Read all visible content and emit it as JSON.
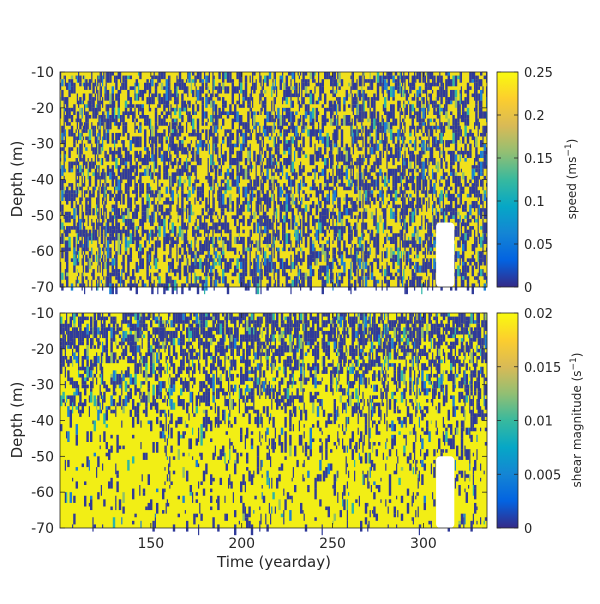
{
  "chart_data": [
    {
      "type": "heatmap",
      "ylabel": "Depth (m)",
      "xlabel": "",
      "xlim": [
        100,
        335
      ],
      "ylim": [
        -70,
        -10
      ],
      "xticks": [
        150,
        200,
        250,
        300
      ],
      "yticks": [
        -10,
        -20,
        -30,
        -40,
        -50,
        -60,
        -70
      ],
      "xtick_labels": [
        "",
        "",
        "",
        ""
      ],
      "ytick_labels": [
        "-10",
        "-20",
        "-30",
        "-40",
        "-50",
        "-60",
        "-70"
      ],
      "colorbar": {
        "label_prefix": "speed (ms",
        "label_exp": "−1",
        "label_suffix": ")",
        "range": [
          0,
          0.25
        ],
        "ticks": [
          0,
          0.05,
          0.1,
          0.15,
          0.2,
          0.25
        ],
        "tick_labels": [
          "0",
          "0.05",
          "0.1",
          "0.15",
          "0.2",
          "0.25"
        ]
      },
      "colormap": "parula",
      "pattern": "speed",
      "no_data_region": {
        "x": [
          307,
          317
        ],
        "y_top": -52
      }
    },
    {
      "type": "heatmap",
      "ylabel": "Depth (m)",
      "xlabel": "Time (yearday)",
      "xlim": [
        100,
        335
      ],
      "ylim": [
        -70,
        -10
      ],
      "xticks": [
        150,
        200,
        250,
        300
      ],
      "yticks": [
        -10,
        -20,
        -30,
        -40,
        -50,
        -60,
        -70
      ],
      "xtick_labels": [
        "150",
        "200",
        "250",
        "300"
      ],
      "ytick_labels": [
        "-10",
        "-20",
        "-30",
        "-40",
        "-50",
        "-60",
        "-70"
      ],
      "colorbar": {
        "label_prefix": "shear magnitude (s",
        "label_exp": "−1",
        "label_suffix": ")",
        "range": [
          0,
          0.02
        ],
        "ticks": [
          0,
          0.005,
          0.01,
          0.015,
          0.02
        ],
        "tick_labels": [
          "0",
          "0.005",
          "0.01",
          "0.015",
          "0.02"
        ]
      },
      "colormap": "parula",
      "pattern": "shear",
      "no_data_region": {
        "x": [
          307,
          317
        ],
        "y_top": -50
      }
    }
  ]
}
